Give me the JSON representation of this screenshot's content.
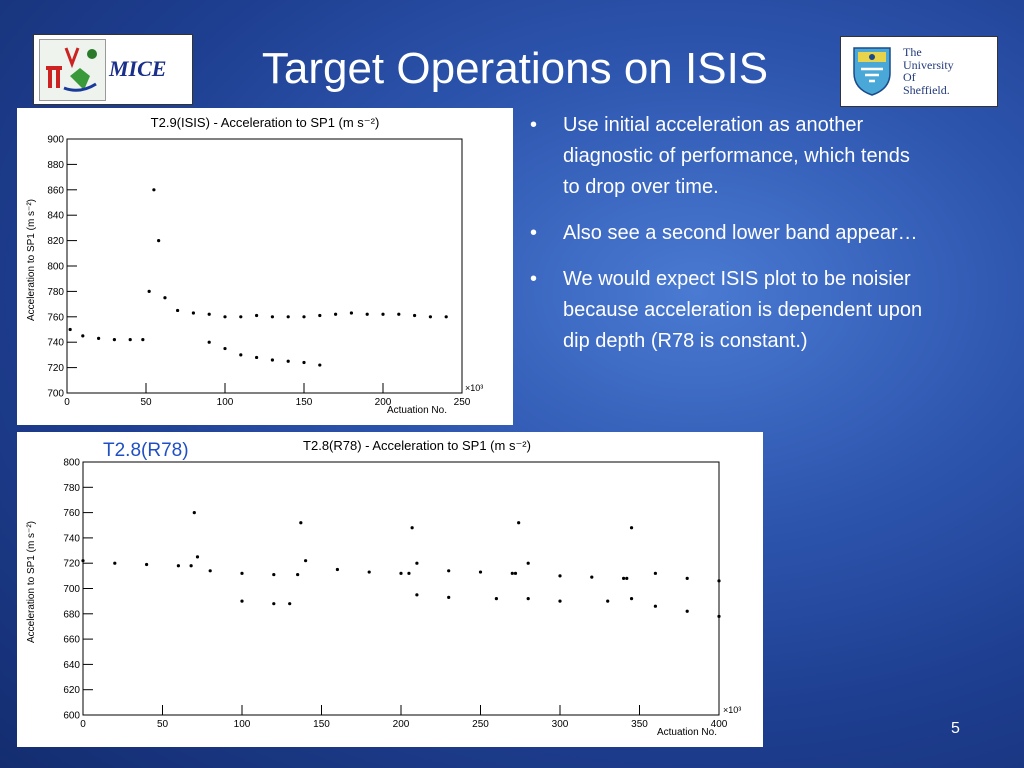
{
  "slide": {
    "title": "Target Operations on ISIS",
    "page_number": "5",
    "mice_logo_text": "MICE",
    "sheffield_lines": [
      "The",
      "University",
      "Of",
      "Sheffield."
    ],
    "inset_label": "T2.8(R78)",
    "bullets": [
      "Use initial acceleration as another diagnostic of performance, which tends to drop over time.",
      "Also see a second lower band appear…",
      "We would expect ISIS plot to be noisier because acceleration is dependent upon dip depth (R78 is constant.)"
    ]
  },
  "chart_data": [
    {
      "type": "scatter",
      "title": "T2.9(ISIS) - Acceleration to SP1 (m s⁻²)",
      "xlabel": "Actuation No.",
      "ylabel": "Acceleration to SP1 (m s⁻²)",
      "x_multiplier": "×10³",
      "xlim": [
        0,
        250
      ],
      "ylim": [
        700,
        900
      ],
      "xticks": [
        0,
        50,
        100,
        150,
        200,
        250
      ],
      "yticks": [
        700,
        720,
        740,
        760,
        780,
        800,
        820,
        840,
        860,
        880,
        900
      ],
      "grid": false,
      "legend": "none",
      "point_color": "#000000",
      "series": [
        {
          "x": [
            2,
            10,
            20,
            30,
            40,
            48,
            52,
            55,
            58,
            62,
            70,
            80,
            90,
            100,
            110,
            120,
            130,
            140,
            150,
            160,
            170,
            180,
            190,
            200,
            210,
            220,
            230,
            240
          ],
          "y": [
            750,
            745,
            743,
            742,
            742,
            742,
            780,
            860,
            820,
            775,
            765,
            763,
            762,
            760,
            760,
            761,
            760,
            760,
            760,
            761,
            762,
            763,
            762,
            762,
            762,
            761,
            760,
            760
          ]
        },
        {
          "x": [
            90,
            100,
            110,
            120,
            130,
            140,
            150,
            160
          ],
          "y": [
            740,
            735,
            730,
            728,
            726,
            725,
            724,
            722
          ]
        }
      ]
    },
    {
      "type": "scatter",
      "title": "T2.8(R78) - Acceleration to SP1 (m s⁻²)",
      "xlabel": "Actuation No.",
      "ylabel": "Acceleration to SP1 (m s⁻²)",
      "x_multiplier": "×10³",
      "xlim": [
        0,
        400
      ],
      "ylim": [
        600,
        800
      ],
      "xticks": [
        0,
        50,
        100,
        150,
        200,
        250,
        300,
        350,
        400
      ],
      "yticks": [
        600,
        620,
        640,
        660,
        680,
        700,
        720,
        740,
        760,
        780,
        800
      ],
      "grid": false,
      "legend": "none",
      "point_color": "#000000",
      "series": [
        {
          "x": [
            0,
            20,
            40,
            60,
            68,
            70,
            72,
            80,
            100,
            120,
            135,
            137,
            140,
            160,
            180,
            200,
            205,
            207,
            210,
            230,
            250,
            270,
            272,
            274,
            280,
            300,
            320,
            340,
            342,
            345,
            360,
            380,
            400
          ],
          "y": [
            722,
            720,
            719,
            718,
            718,
            760,
            725,
            714,
            712,
            711,
            711,
            752,
            722,
            715,
            713,
            712,
            712,
            748,
            720,
            714,
            713,
            712,
            712,
            752,
            720,
            710,
            709,
            708,
            708,
            748,
            712,
            708,
            706
          ]
        },
        {
          "x": [
            100,
            120,
            130,
            210,
            230,
            260,
            280,
            300,
            330,
            345,
            360,
            380,
            400
          ],
          "y": [
            690,
            688,
            688,
            695,
            693,
            692,
            692,
            690,
            690,
            692,
            686,
            682,
            678
          ]
        }
      ]
    }
  ]
}
